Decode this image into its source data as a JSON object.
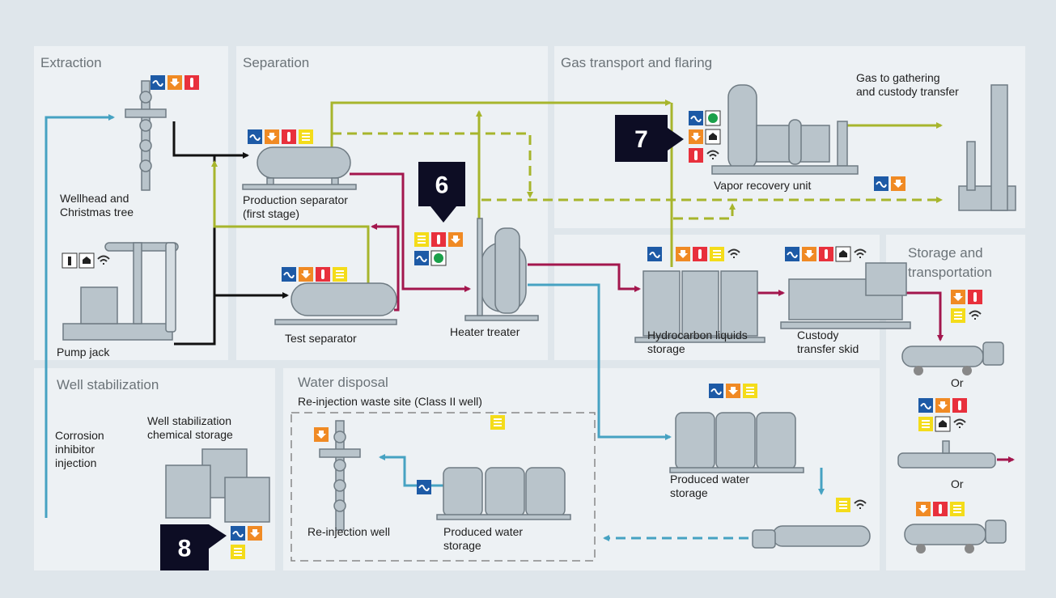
{
  "sections": [
    {
      "lines": [
        "Extraction"
      ]
    },
    {
      "lines": [
        "Separation"
      ]
    },
    {
      "lines": [
        "Gas transport and flaring"
      ]
    },
    {
      "lines": [
        "Storage and",
        "transportation"
      ]
    },
    {
      "lines": [
        "Well stabilization"
      ]
    },
    {
      "lines": [
        "Water disposal"
      ]
    }
  ],
  "labels": [
    {
      "lines": [
        "Wellhead and",
        "Christmas tree"
      ]
    },
    {
      "lines": [
        "Pump jack"
      ]
    },
    {
      "lines": [
        "Production separator",
        "(first stage)"
      ]
    },
    {
      "lines": [
        "Test separator"
      ]
    },
    {
      "lines": [
        "Heater treater"
      ]
    },
    {
      "lines": [
        "Vapor recovery unit"
      ]
    },
    {
      "lines": [
        "Gas to gathering",
        "and custody transfer"
      ]
    },
    {
      "lines": [
        "Hydrocarbon liquids",
        "storage"
      ]
    },
    {
      "lines": [
        "Custody",
        "transfer skid"
      ]
    },
    {
      "lines": [
        "Or"
      ]
    },
    {
      "lines": [
        "Or"
      ]
    },
    {
      "lines": [
        "Well stabilization",
        "chemical storage"
      ]
    },
    {
      "lines": [
        "Corrosion",
        "inhibitor",
        "injection"
      ]
    },
    {
      "lines": [
        "Re-injection waste site (Class II well)"
      ]
    },
    {
      "lines": [
        "Re-injection well"
      ]
    },
    {
      "lines": [
        "Produced water",
        "storage"
      ]
    },
    {
      "lines": [
        "Produced water",
        "storage"
      ]
    }
  ],
  "badges": [
    6,
    7,
    8
  ]
}
